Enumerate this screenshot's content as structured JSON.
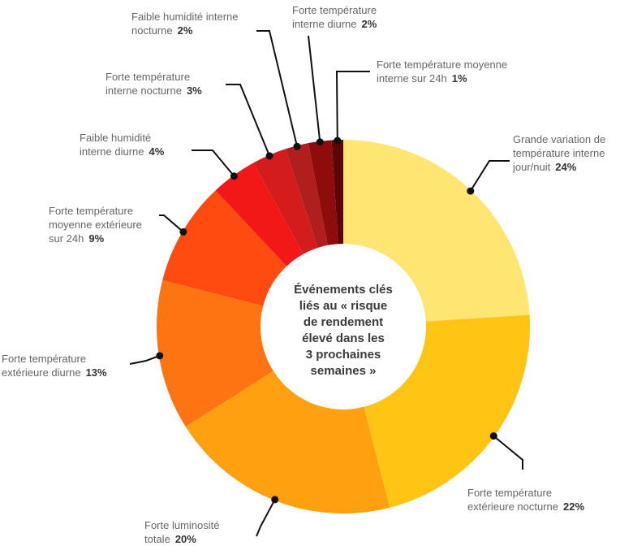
{
  "chart_data": {
    "type": "pie",
    "variant": "donut",
    "title": "Événements clés liés au « risque de rendement élevé dans les 3 prochaines semaines »",
    "title_lines": [
      "Événements clés",
      "liés au « risque",
      "de rendement",
      "élevé dans les",
      "3 prochaines",
      "semaines »"
    ],
    "slices": [
      {
        "label": "Grande variation de température interne jour/nuit",
        "label_lines": [
          "Grande variation de",
          "température interne",
          "jour/nuit"
        ],
        "value": 24,
        "value_label": "24%",
        "color": "#FFE672"
      },
      {
        "label": "Forte température extérieure nocturne",
        "label_lines": [
          "Forte température",
          "extérieure nocturne"
        ],
        "value": 22,
        "value_label": "22%",
        "color": "#FFC414"
      },
      {
        "label": "Forte luminosité totale",
        "label_lines": [
          "Forte luminosité",
          "totale"
        ],
        "value": 20,
        "value_label": "20%",
        "color": "#FFA010"
      },
      {
        "label": "Forte température extérieure diurne",
        "label_lines": [
          "Forte température",
          "extérieure diurne"
        ],
        "value": 13,
        "value_label": "13%",
        "color": "#FF7412"
      },
      {
        "label": "Forte température moyenne extérieure sur 24h",
        "label_lines": [
          "Forte température",
          "moyenne extérieure",
          "sur 24h"
        ],
        "value": 9,
        "value_label": "9%",
        "color": "#FF4B10"
      },
      {
        "label": "Faible humidité interne diurne",
        "label_lines": [
          "Faible humidité",
          "interne diurne"
        ],
        "value": 4,
        "value_label": "4%",
        "color": "#F21818"
      },
      {
        "label": "Forte température interne nocturne",
        "label_lines": [
          "Forte température",
          "interne nocturne"
        ],
        "value": 3,
        "value_label": "3%",
        "color": "#D41C1C"
      },
      {
        "label": "Faible humidité interne nocturne",
        "label_lines": [
          "Faible humidité interne",
          "nocturne"
        ],
        "value": 2,
        "value_label": "2%",
        "color": "#B01E1E"
      },
      {
        "label": "Forte température interne diurne",
        "label_lines": [
          "Forte température",
          "interne diurne"
        ],
        "value": 2,
        "value_label": "2%",
        "color": "#8E0C0C"
      },
      {
        "label": "Forte température moyenne interne sur 24h",
        "label_lines": [
          "Forte température moyenne",
          "interne sur 24h"
        ],
        "value": 1,
        "value_label": "1%",
        "color": "#5E0606"
      }
    ],
    "legend": "none"
  }
}
